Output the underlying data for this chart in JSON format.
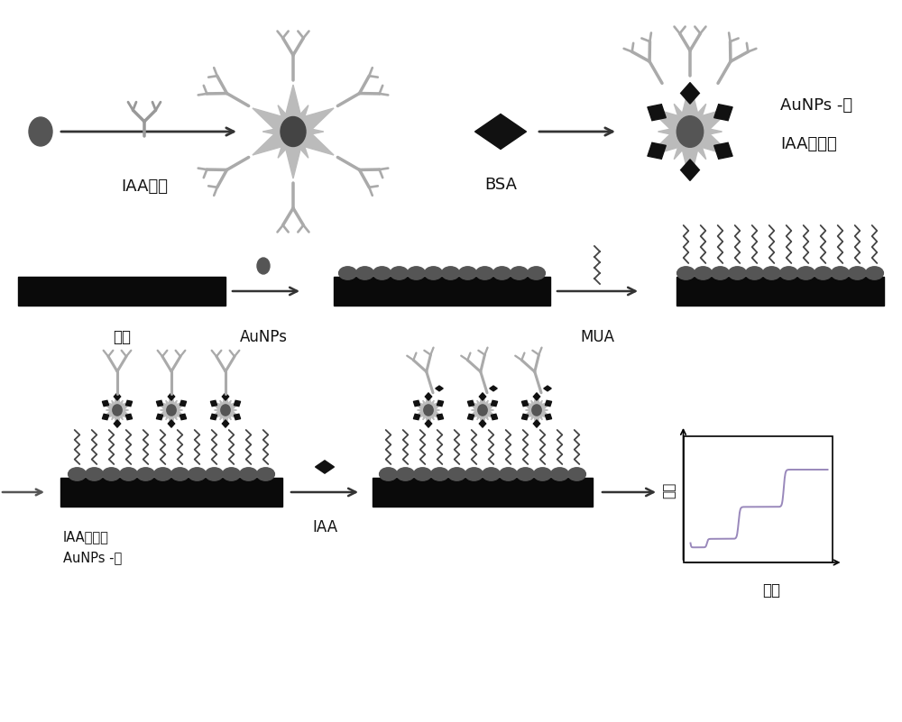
{
  "bg_color": "#ffffff",
  "text_color": "#000000",
  "dark_gray": "#555555",
  "light_gray": "#aaaaaa",
  "black": "#111111",
  "purple_line": "#9999bb",
  "nanoparticle_color": "#555555",
  "spike_color": "#bbbbbb",
  "electrode_color": "#0a0a0a",
  "aunp_row_color": "#555555",
  "mua_color": "#444444",
  "row1_labels": {
    "iaa_antibody": "IAA抗体",
    "bsa": "BSA",
    "aunps_complex_line1": "AuNPs -抗",
    "aunps_complex_line2": "IAA复合物"
  },
  "row2_labels": {
    "electrode": "电极",
    "aunps": "AuNPs",
    "mua": "MUA"
  },
  "row3_labels": {
    "aunps_complex2_line1": "AuNPs -抗",
    "aunps_complex2_line2": "IAA复合物",
    "iaa": "IAA",
    "current": "电流",
    "time": "时间"
  }
}
